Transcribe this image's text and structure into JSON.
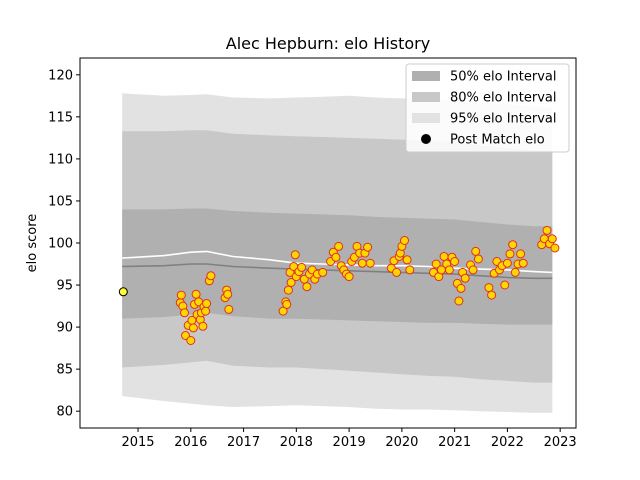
{
  "chart_data": {
    "type": "scatter",
    "title": "Alec Hepburn: elo History",
    "xlabel": "",
    "ylabel": "elo score",
    "xlim": [
      2013.9,
      2023.3
    ],
    "ylim": [
      78,
      122
    ],
    "x_ticks": [
      2015,
      2016,
      2017,
      2018,
      2019,
      2020,
      2021,
      2022,
      2023
    ],
    "y_ticks": [
      80,
      85,
      90,
      95,
      100,
      105,
      110,
      115,
      120
    ],
    "grid": false,
    "legend": {
      "placement": "top-right",
      "entries": [
        {
          "label": "50% elo Interval",
          "color": "#b0b0b0",
          "kind": "patch"
        },
        {
          "label": "80% elo Interval",
          "color": "#c8c8c8",
          "kind": "patch"
        },
        {
          "label": "95% elo Interval",
          "color": "#e2e2e2",
          "kind": "patch"
        },
        {
          "label": "Post Match elo",
          "color": "#000000",
          "kind": "marker"
        }
      ]
    },
    "colors": {
      "band95": "#e2e2e2",
      "band80": "#c8c8c8",
      "band50": "#b0b0b0",
      "median_line": "#808080",
      "mean_line": "#ffffff",
      "point_fill": "#ffd700",
      "point_edge": "#e0301e",
      "first_point_fill": "#ffff33",
      "first_point_edge": "#000000"
    },
    "series": [
      {
        "name": "95% elo Interval",
        "kind": "band",
        "x": [
          2014.7,
          2015.5,
          2016.0,
          2016.3,
          2016.8,
          2017.5,
          2018.0,
          2018.5,
          2019.0,
          2019.5,
          2020.0,
          2020.5,
          2021.0,
          2021.5,
          2022.0,
          2022.5,
          2022.85
        ],
        "lower": [
          81.8,
          81.2,
          80.9,
          80.7,
          80.5,
          80.6,
          80.7,
          80.6,
          80.5,
          80.3,
          80.2,
          80.2,
          80.1,
          80.0,
          79.9,
          79.8,
          79.8
        ],
        "upper": [
          117.8,
          117.5,
          117.6,
          117.7,
          117.3,
          117.2,
          117.3,
          117.4,
          117.5,
          117.3,
          117.2,
          117.1,
          117.0,
          116.7,
          116.5,
          116.2,
          116.1
        ]
      },
      {
        "name": "80% elo Interval",
        "kind": "band",
        "x": [
          2014.7,
          2015.5,
          2016.0,
          2016.3,
          2016.8,
          2017.5,
          2018.0,
          2018.5,
          2019.0,
          2019.5,
          2020.0,
          2020.5,
          2021.0,
          2021.5,
          2022.0,
          2022.5,
          2022.85
        ],
        "lower": [
          85.2,
          85.5,
          85.8,
          86.0,
          85.4,
          85.2,
          85.2,
          85.0,
          84.8,
          84.6,
          84.4,
          84.2,
          84.1,
          83.8,
          83.6,
          83.4,
          83.4
        ],
        "upper": [
          113.3,
          113.3,
          113.4,
          113.4,
          113.0,
          112.8,
          112.7,
          112.6,
          112.5,
          112.4,
          112.3,
          112.2,
          112.0,
          111.6,
          111.3,
          111.0,
          111.0
        ]
      },
      {
        "name": "50% elo Interval",
        "kind": "band",
        "x": [
          2014.7,
          2015.5,
          2016.0,
          2016.3,
          2016.8,
          2017.5,
          2018.0,
          2018.5,
          2019.0,
          2019.5,
          2020.0,
          2020.5,
          2021.0,
          2021.5,
          2022.0,
          2022.5,
          2022.85
        ],
        "lower": [
          91.0,
          91.2,
          91.5,
          91.7,
          91.3,
          91.0,
          91.0,
          90.9,
          90.8,
          90.7,
          90.6,
          90.5,
          90.5,
          90.4,
          90.3,
          90.3,
          90.3
        ],
        "upper": [
          104.0,
          104.0,
          104.1,
          104.1,
          103.8,
          103.6,
          103.5,
          103.4,
          103.3,
          103.1,
          103.0,
          102.9,
          102.8,
          102.5,
          102.2,
          102.0,
          102.0
        ]
      },
      {
        "name": "median",
        "kind": "line",
        "x": [
          2014.7,
          2015.5,
          2016.0,
          2016.3,
          2016.8,
          2017.5,
          2018.0,
          2018.5,
          2019.0,
          2019.5,
          2020.0,
          2020.5,
          2021.0,
          2021.5,
          2022.0,
          2022.5,
          2022.85
        ],
        "y": [
          97.2,
          97.3,
          97.5,
          97.5,
          97.2,
          97.0,
          96.9,
          96.8,
          96.7,
          96.6,
          96.5,
          96.4,
          96.3,
          96.1,
          95.9,
          95.8,
          95.8
        ]
      },
      {
        "name": "mean",
        "kind": "line",
        "x": [
          2014.7,
          2015.5,
          2016.0,
          2016.3,
          2016.8,
          2017.5,
          2018.0,
          2018.5,
          2019.0,
          2019.5,
          2020.0,
          2020.5,
          2021.0,
          2021.5,
          2022.0,
          2022.5,
          2022.85
        ],
        "y": [
          98.2,
          98.5,
          98.9,
          99.0,
          98.4,
          98.0,
          97.6,
          97.5,
          97.4,
          97.3,
          97.3,
          97.2,
          97.0,
          96.9,
          96.8,
          96.6,
          96.5
        ]
      },
      {
        "name": "Post Match elo",
        "kind": "points",
        "x": [
          2014.72,
          2015.8,
          2015.82,
          2015.85,
          2015.88,
          2015.9,
          2015.95,
          2016.0,
          2016.02,
          2016.05,
          2016.07,
          2016.1,
          2016.12,
          2016.15,
          2016.18,
          2016.2,
          2016.23,
          2016.25,
          2016.28,
          2016.3,
          2016.35,
          2016.38,
          2016.65,
          2016.68,
          2016.7,
          2016.72,
          2017.75,
          2017.8,
          2017.82,
          2017.85,
          2017.88,
          2017.9,
          2017.95,
          2017.98,
          2018.0,
          2018.05,
          2018.1,
          2018.15,
          2018.2,
          2018.25,
          2018.3,
          2018.35,
          2018.4,
          2018.5,
          2018.65,
          2018.7,
          2018.75,
          2018.8,
          2018.85,
          2018.9,
          2018.95,
          2019.0,
          2019.05,
          2019.1,
          2019.15,
          2019.2,
          2019.25,
          2019.3,
          2019.35,
          2019.4,
          2019.8,
          2019.85,
          2019.9,
          2019.95,
          2019.97,
          2020.0,
          2020.05,
          2020.1,
          2020.15,
          2020.6,
          2020.65,
          2020.7,
          2020.75,
          2020.8,
          2020.85,
          2020.9,
          2020.95,
          2021.0,
          2021.05,
          2021.08,
          2021.12,
          2021.15,
          2021.2,
          2021.3,
          2021.35,
          2021.4,
          2021.45,
          2021.65,
          2021.7,
          2021.75,
          2021.8,
          2021.85,
          2021.9,
          2021.95,
          2022.0,
          2022.05,
          2022.1,
          2022.15,
          2022.2,
          2022.25,
          2022.3,
          2022.65,
          2022.7,
          2022.75,
          2022.8,
          2022.85,
          2022.9
        ],
        "y": [
          94.2,
          92.9,
          93.8,
          92.5,
          91.7,
          89.0,
          90.2,
          88.4,
          90.8,
          89.9,
          92.7,
          93.9,
          91.5,
          93.0,
          90.9,
          91.7,
          90.1,
          92.4,
          91.9,
          92.8,
          95.5,
          96.1,
          93.5,
          94.4,
          93.9,
          92.1,
          91.9,
          93.0,
          92.7,
          94.4,
          96.5,
          95.3,
          97.2,
          98.6,
          96.0,
          96.6,
          97.1,
          95.7,
          94.8,
          96.3,
          96.8,
          95.7,
          96.3,
          96.5,
          97.8,
          98.9,
          98.3,
          99.6,
          97.3,
          96.8,
          96.3,
          96.0,
          97.8,
          98.3,
          99.6,
          98.8,
          97.6,
          98.8,
          99.5,
          97.6,
          97.0,
          97.9,
          96.5,
          98.4,
          98.8,
          99.6,
          100.3,
          98.0,
          96.8,
          96.5,
          97.5,
          96.0,
          96.8,
          98.4,
          97.5,
          96.8,
          98.3,
          97.8,
          95.2,
          93.1,
          94.6,
          96.5,
          95.8,
          97.4,
          96.8,
          99.0,
          98.1,
          94.7,
          93.8,
          96.4,
          97.8,
          96.8,
          97.3,
          95.0,
          97.6,
          98.7,
          99.8,
          96.5,
          97.5,
          98.7,
          97.6,
          99.8,
          100.5,
          101.5,
          99.9,
          100.5,
          99.4
        ]
      }
    ]
  }
}
